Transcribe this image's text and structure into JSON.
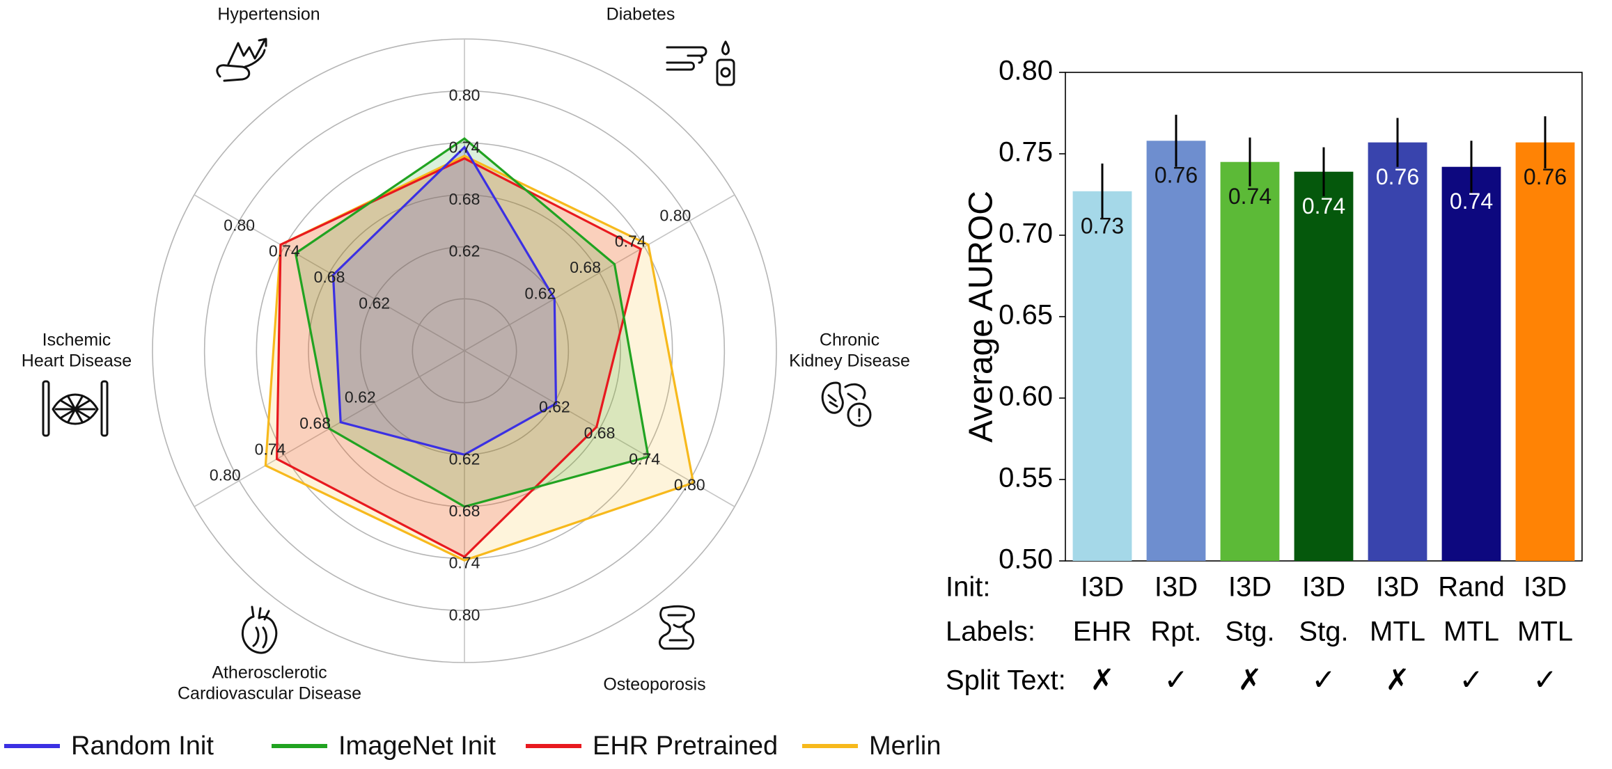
{
  "chart_data": [
    {
      "type": "radar",
      "axes": [
        "Hypertension",
        "Diabetes",
        "Chronic Kidney Disease",
        "Osteoporosis",
        "Atherosclerotic Cardiovascular Disease",
        "Ischemic Heart Disease"
      ],
      "axis_label_lines": [
        [
          "Hypertension"
        ],
        [
          "Diabetes"
        ],
        [
          "Chronic",
          "Kidney Disease"
        ],
        [
          "Osteoporosis"
        ],
        [
          "Atherosclerotic",
          "Cardiovascular Disease"
        ],
        [
          "Ischemic",
          "Heart Disease"
        ]
      ],
      "axis_icons": [
        "heart-pulse-icon",
        "glucose-finger-icon",
        "kidney-icon",
        "bone-joint-icon",
        "heart-icon",
        "heart-vessels-icon"
      ],
      "rlim": [
        0.5,
        0.86
      ],
      "ring_values": [
        0.56,
        0.62,
        0.68,
        0.74,
        0.8,
        0.86
      ],
      "tick_labels": [
        "0.62",
        "0.68",
        "0.74",
        "0.80"
      ],
      "series": [
        {
          "name": "Random Init",
          "color": "#3b30e3",
          "values": [
            0.675,
            0.735,
            0.62,
            0.622,
            0.62,
            0.665
          ]
        },
        {
          "name": "ImageNet Init",
          "color": "#21a321",
          "values": [
            0.725,
            0.745,
            0.7,
            0.745,
            0.68,
            0.68
          ]
        },
        {
          "name": "EHR Pretrained",
          "color": "#e8191f",
          "values": [
            0.745,
            0.722,
            0.735,
            0.676,
            0.738,
            0.75
          ]
        },
        {
          "name": "Merlin",
          "color": "#f7b91c",
          "values": [
            0.745,
            0.725,
            0.745,
            0.805,
            0.742,
            0.765
          ]
        }
      ],
      "legend_position": "bottom"
    },
    {
      "type": "bar",
      "ylabel": "Average AUROC",
      "ylim": [
        0.5,
        0.8
      ],
      "yticks": [
        "0.50",
        "0.55",
        "0.60",
        "0.65",
        "0.70",
        "0.75",
        "0.80"
      ],
      "values": [
        0.727,
        0.758,
        0.745,
        0.739,
        0.757,
        0.742,
        0.757
      ],
      "errors": [
        0.017,
        0.016,
        0.015,
        0.015,
        0.015,
        0.016,
        0.016
      ],
      "value_labels": [
        "0.73",
        "0.76",
        "0.74",
        "0.74",
        "0.76",
        "0.74",
        "0.76"
      ],
      "bar_colors": [
        "#a5d8e8",
        "#6e8ecf",
        "#5cba37",
        "#05580c",
        "#3944ad",
        "#0d087f",
        "#ff8305"
      ],
      "label_colors": [
        "#111111",
        "#111111",
        "#111111",
        "#ffffff",
        "#ffffff",
        "#ffffff",
        "#111111"
      ],
      "table": {
        "row_headers": [
          "Init:",
          "Labels:",
          "Split Text:"
        ],
        "init": [
          "I3D",
          "I3D",
          "I3D",
          "I3D",
          "I3D",
          "Rand",
          "I3D"
        ],
        "labels": [
          "EHR",
          "Rpt.",
          "Stg.",
          "Stg.",
          "MTL",
          "MTL",
          "MTL"
        ],
        "split_text": [
          "✗",
          "✓",
          "✗",
          "✓",
          "✗",
          "✓",
          "✓"
        ]
      }
    }
  ]
}
